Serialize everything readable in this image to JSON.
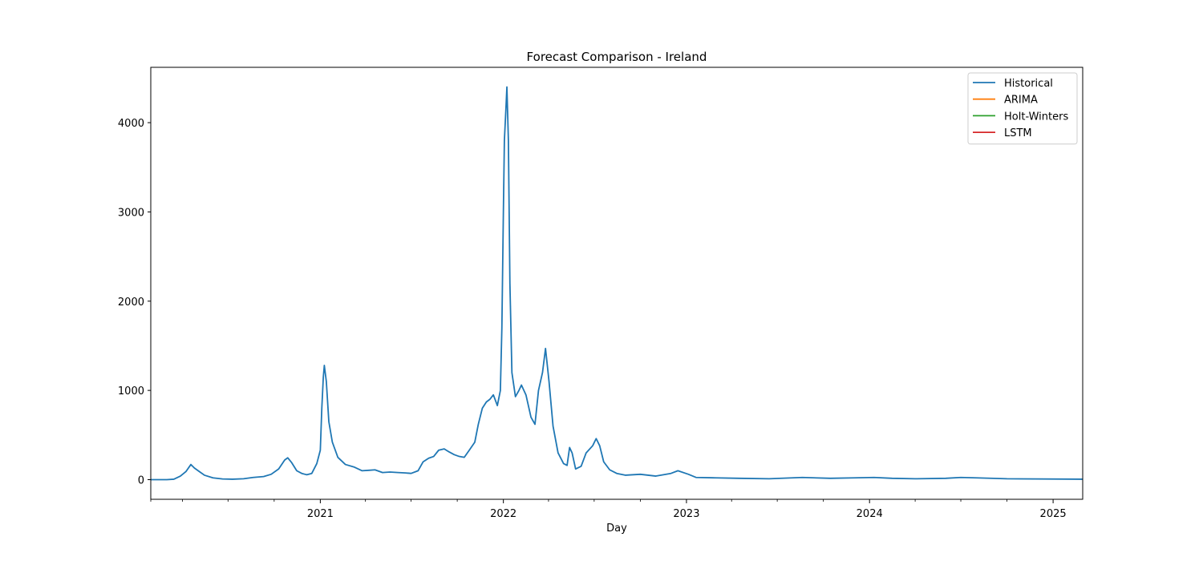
{
  "chart_data": {
    "type": "line",
    "title": "Forecast Comparison - Ireland",
    "xlabel": "Day",
    "ylabel": "",
    "x_axis": "date",
    "xlim": [
      "2020-01-29",
      "2025-03-01"
    ],
    "ylim": [
      -220,
      4620
    ],
    "yticks": [
      0,
      1000,
      2000,
      3000,
      4000
    ],
    "xticks": [
      {
        "date": "2021-01-01",
        "label": "2021"
      },
      {
        "date": "2022-01-01",
        "label": "2022"
      },
      {
        "date": "2023-01-01",
        "label": "2023"
      },
      {
        "date": "2024-01-01",
        "label": "2024"
      },
      {
        "date": "2025-01-01",
        "label": "2025"
      }
    ],
    "grid": false,
    "legend_position": "top-right",
    "series": [
      {
        "name": "Historical",
        "color": "#1f77b4",
        "points": [
          [
            "2020-01-29",
            0
          ],
          [
            "2020-03-01",
            0
          ],
          [
            "2020-03-15",
            5
          ],
          [
            "2020-03-28",
            40
          ],
          [
            "2020-04-08",
            90
          ],
          [
            "2020-04-18",
            170
          ],
          [
            "2020-04-25",
            130
          ],
          [
            "2020-05-05",
            90
          ],
          [
            "2020-05-15",
            50
          ],
          [
            "2020-06-01",
            20
          ],
          [
            "2020-06-20",
            8
          ],
          [
            "2020-07-10",
            5
          ],
          [
            "2020-08-01",
            10
          ],
          [
            "2020-08-20",
            25
          ],
          [
            "2020-09-10",
            35
          ],
          [
            "2020-09-25",
            60
          ],
          [
            "2020-10-10",
            120
          ],
          [
            "2020-10-22",
            220
          ],
          [
            "2020-10-28",
            245
          ],
          [
            "2020-11-05",
            190
          ],
          [
            "2020-11-15",
            100
          ],
          [
            "2020-11-25",
            70
          ],
          [
            "2020-12-05",
            55
          ],
          [
            "2020-12-15",
            70
          ],
          [
            "2020-12-25",
            180
          ],
          [
            "2021-01-01",
            330
          ],
          [
            "2021-01-04",
            800
          ],
          [
            "2021-01-07",
            1150
          ],
          [
            "2021-01-09",
            1280
          ],
          [
            "2021-01-13",
            1100
          ],
          [
            "2021-01-18",
            650
          ],
          [
            "2021-01-25",
            420
          ],
          [
            "2021-02-05",
            250
          ],
          [
            "2021-02-20",
            170
          ],
          [
            "2021-03-10",
            140
          ],
          [
            "2021-03-25",
            100
          ],
          [
            "2021-04-08",
            105
          ],
          [
            "2021-04-20",
            110
          ],
          [
            "2021-05-05",
            80
          ],
          [
            "2021-05-20",
            85
          ],
          [
            "2021-06-05",
            80
          ],
          [
            "2021-06-20",
            75
          ],
          [
            "2021-07-01",
            70
          ],
          [
            "2021-07-15",
            100
          ],
          [
            "2021-07-25",
            200
          ],
          [
            "2021-08-05",
            240
          ],
          [
            "2021-08-15",
            260
          ],
          [
            "2021-08-25",
            330
          ],
          [
            "2021-09-05",
            345
          ],
          [
            "2021-09-15",
            310
          ],
          [
            "2021-09-25",
            280
          ],
          [
            "2021-10-05",
            260
          ],
          [
            "2021-10-15",
            250
          ],
          [
            "2021-10-25",
            330
          ],
          [
            "2021-11-05",
            420
          ],
          [
            "2021-11-12",
            620
          ],
          [
            "2021-11-20",
            800
          ],
          [
            "2021-11-28",
            870
          ],
          [
            "2021-12-05",
            900
          ],
          [
            "2021-12-12",
            950
          ],
          [
            "2021-12-20",
            830
          ],
          [
            "2021-12-26",
            1000
          ],
          [
            "2021-12-29",
            1700
          ],
          [
            "2022-01-01",
            3000
          ],
          [
            "2022-01-03",
            3800
          ],
          [
            "2022-01-06",
            4150
          ],
          [
            "2022-01-08",
            4400
          ],
          [
            "2022-01-11",
            3800
          ],
          [
            "2022-01-14",
            2200
          ],
          [
            "2022-01-18",
            1200
          ],
          [
            "2022-01-25",
            930
          ],
          [
            "2022-02-01",
            1000
          ],
          [
            "2022-02-06",
            1060
          ],
          [
            "2022-02-15",
            950
          ],
          [
            "2022-02-25",
            700
          ],
          [
            "2022-03-05",
            620
          ],
          [
            "2022-03-12",
            1000
          ],
          [
            "2022-03-20",
            1200
          ],
          [
            "2022-03-26",
            1470
          ],
          [
            "2022-04-02",
            1100
          ],
          [
            "2022-04-10",
            600
          ],
          [
            "2022-04-20",
            300
          ],
          [
            "2022-05-01",
            180
          ],
          [
            "2022-05-08",
            160
          ],
          [
            "2022-05-13",
            360
          ],
          [
            "2022-05-18",
            300
          ],
          [
            "2022-05-25",
            120
          ],
          [
            "2022-06-05",
            150
          ],
          [
            "2022-06-15",
            300
          ],
          [
            "2022-06-28",
            380
          ],
          [
            "2022-07-05",
            460
          ],
          [
            "2022-07-12",
            380
          ],
          [
            "2022-07-20",
            200
          ],
          [
            "2022-08-01",
            110
          ],
          [
            "2022-08-15",
            70
          ],
          [
            "2022-09-01",
            50
          ],
          [
            "2022-10-01",
            60
          ],
          [
            "2022-11-01",
            40
          ],
          [
            "2022-12-01",
            70
          ],
          [
            "2022-12-15",
            100
          ],
          [
            "2023-01-05",
            60
          ],
          [
            "2023-01-20",
            25
          ],
          [
            "2023-03-01",
            20
          ],
          [
            "2023-04-15",
            15
          ],
          [
            "2023-06-15",
            10
          ],
          [
            "2023-08-20",
            25
          ],
          [
            "2023-10-15",
            15
          ],
          [
            "2023-12-01",
            20
          ],
          [
            "2024-01-10",
            25
          ],
          [
            "2024-02-15",
            15
          ],
          [
            "2024-04-01",
            10
          ],
          [
            "2024-06-01",
            15
          ],
          [
            "2024-07-01",
            25
          ],
          [
            "2024-08-01",
            20
          ],
          [
            "2024-10-01",
            10
          ],
          [
            "2025-03-01",
            5
          ]
        ]
      },
      {
        "name": "ARIMA",
        "color": "#ff7f0e",
        "points": []
      },
      {
        "name": "Holt-Winters",
        "color": "#2ca02c",
        "points": []
      },
      {
        "name": "LSTM",
        "color": "#d62728",
        "points": []
      }
    ]
  }
}
